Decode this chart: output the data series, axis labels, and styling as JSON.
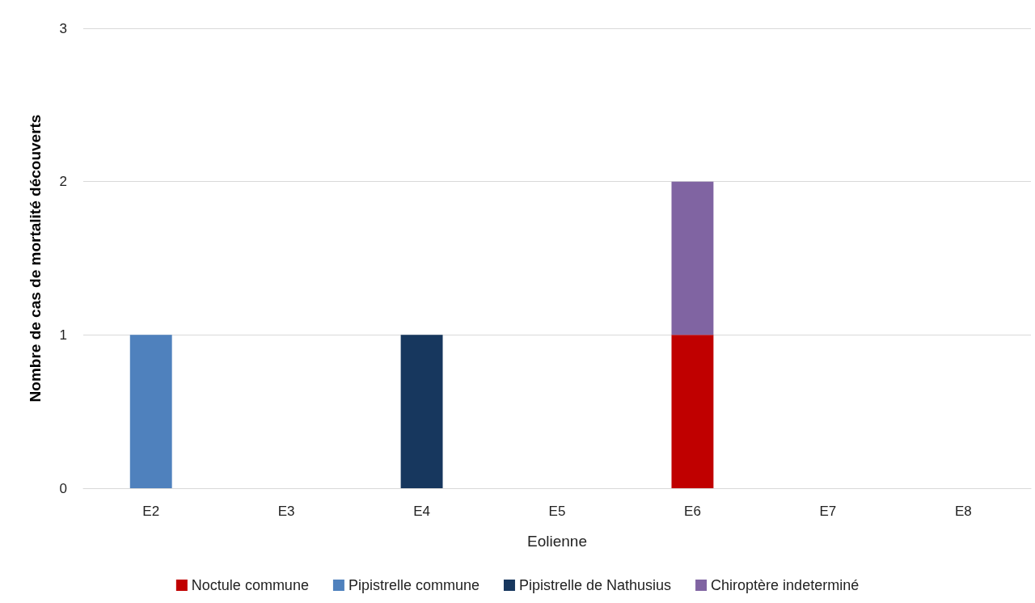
{
  "chart_data": {
    "type": "bar",
    "stacked": true,
    "xlabel": "Eolienne",
    "ylabel": "Nombre de cas de mortalité découverts",
    "categories": [
      "E2",
      "E3",
      "E4",
      "E5",
      "E6",
      "E7",
      "E8"
    ],
    "series": [
      {
        "name": "Noctule commune",
        "color": "#c00000",
        "values": [
          0,
          0,
          0,
          0,
          1,
          0,
          0
        ]
      },
      {
        "name": "Pipistrelle commune",
        "color": "#4f81bd",
        "values": [
          1,
          0,
          0,
          0,
          0,
          0,
          0
        ]
      },
      {
        "name": "Pipistrelle de Nathusius",
        "color": "#17375e",
        "values": [
          0,
          0,
          1,
          0,
          0,
          0,
          0
        ]
      },
      {
        "name": "Chiroptère indeterminé",
        "color": "#8064a2",
        "values": [
          0,
          0,
          0,
          0,
          1,
          0,
          0
        ]
      }
    ],
    "ylim": [
      0,
      3
    ],
    "yticks": [
      0,
      1,
      2,
      3
    ],
    "grid": "y",
    "legend": "bottom"
  }
}
